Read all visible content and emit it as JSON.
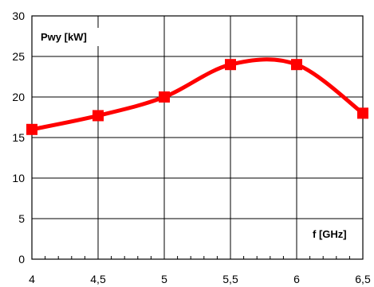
{
  "chart_data": {
    "type": "line",
    "title": "",
    "xlabel": "f [GHz]",
    "ylabel": "Pwy [kW]",
    "x": [
      4,
      4.5,
      5,
      5.5,
      6,
      6.5
    ],
    "x_tick_labels": [
      "4",
      "4,5",
      "5",
      "5,5",
      "6",
      "6,5"
    ],
    "y_tick_labels": [
      "0",
      "5",
      "10",
      "15",
      "20",
      "25",
      "30"
    ],
    "xlim": [
      4,
      6.5
    ],
    "ylim": [
      0,
      30
    ],
    "y_ticks": [
      0,
      5,
      10,
      15,
      20,
      25,
      30
    ],
    "grid": true,
    "smooth": true,
    "series": [
      {
        "values": [
          16,
          17.7,
          20,
          24,
          24,
          18
        ],
        "color": "#ff0000",
        "marker": "square"
      }
    ]
  }
}
